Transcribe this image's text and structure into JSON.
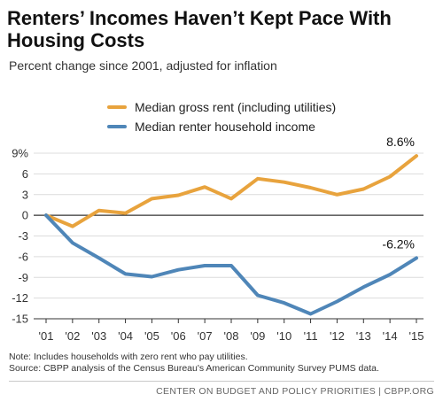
{
  "header": {
    "title": "Renters’ Incomes Haven’t Kept Pace With Housing Costs",
    "subtitle": "Percent change since 2001, adjusted for inflation"
  },
  "chart_data": {
    "type": "line",
    "x": [
      "'01",
      "'02",
      "'03",
      "'04",
      "'05",
      "'06",
      "'07",
      "'08",
      "'09",
      "'10",
      "'11",
      "'12",
      "'13",
      "'14",
      "'15"
    ],
    "series": [
      {
        "name": "Median gross rent (including utilities)",
        "color": "#E8A33D",
        "values": [
          0,
          -1.6,
          0.7,
          0.3,
          2.4,
          2.9,
          4.1,
          2.4,
          5.3,
          4.8,
          4.0,
          3.0,
          3.8,
          5.6,
          8.6
        ]
      },
      {
        "name": "Median renter household income",
        "color": "#4F86B8",
        "values": [
          0,
          -4.0,
          -6.2,
          -8.5,
          -8.9,
          -7.9,
          -7.3,
          -7.3,
          -11.6,
          -12.7,
          -14.3,
          -12.5,
          -10.4,
          -8.6,
          -6.2
        ]
      }
    ],
    "yticks": [
      9,
      6,
      3,
      0,
      -3,
      -6,
      -9,
      -12,
      -15
    ],
    "ytick_labels": [
      "9%",
      "6",
      "3",
      "0",
      "-3",
      "-6",
      "-9",
      "-12",
      "-15"
    ],
    "ylim": [
      -15,
      9
    ],
    "annotations": [
      "8.6%",
      "-6.2%"
    ],
    "grid": "horizontal",
    "legend": "top-left"
  },
  "notes": {
    "line1": "Note: Includes households with zero rent who pay utilities.",
    "line2": "Source: CBPP analysis of the Census Bureau's American Community Survey PUMS data."
  },
  "footer": {
    "text": "CENTER ON BUDGET AND POLICY PRIORITIES | CBPP.ORG"
  }
}
